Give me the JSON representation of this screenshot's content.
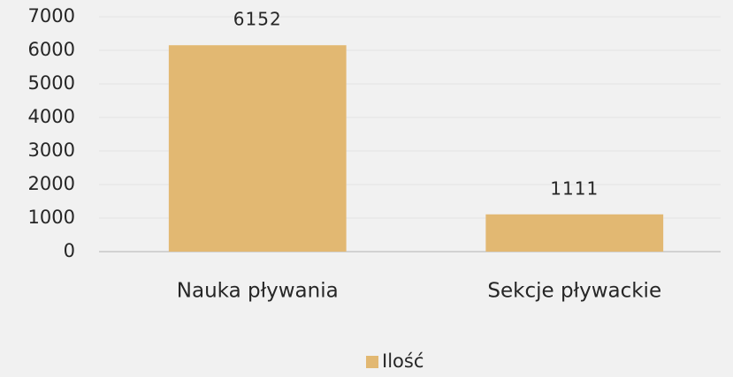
{
  "chart_data": {
    "type": "bar",
    "categories": [
      "Nauka pływania",
      "Sekcje pływackie"
    ],
    "series": [
      {
        "name": "Ilość",
        "color": "#e2b872",
        "values": [
          6152,
          1111
        ]
      }
    ],
    "ylim": [
      0,
      7000
    ],
    "yticks": [
      0,
      1000,
      2000,
      3000,
      4000,
      5000,
      6000,
      7000
    ],
    "grid": true,
    "legend": "bottom"
  }
}
